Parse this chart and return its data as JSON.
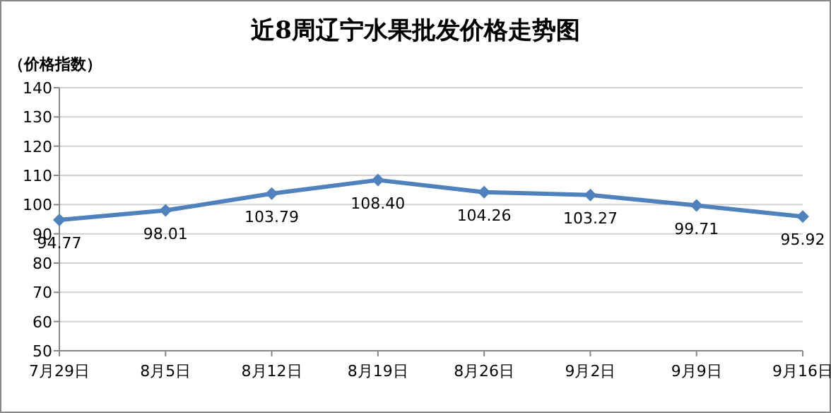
{
  "chart_data": {
    "type": "line",
    "title": "近8周辽宁水果批发价格走势图",
    "ylabel": "（价格指数）",
    "categories": [
      "7月29日",
      "8月5日",
      "8月12日",
      "8月19日",
      "8月26日",
      "9月2日",
      "9月9日",
      "9月16日"
    ],
    "series": [
      {
        "color": "#4f81bd",
        "values": [
          94.77,
          98.01,
          103.79,
          108.4,
          104.26,
          103.27,
          99.71,
          95.92
        ],
        "value_labels": [
          "94.77",
          "98.01",
          "103.79",
          "108.40",
          "104.26",
          "103.27",
          "99.71",
          "95.92"
        ]
      }
    ],
    "ylim": [
      50,
      140
    ],
    "yticks": [
      50,
      60,
      70,
      80,
      90,
      100,
      110,
      120,
      130,
      140
    ],
    "grid": "y",
    "marker": "diamond",
    "line_style": "solid"
  }
}
